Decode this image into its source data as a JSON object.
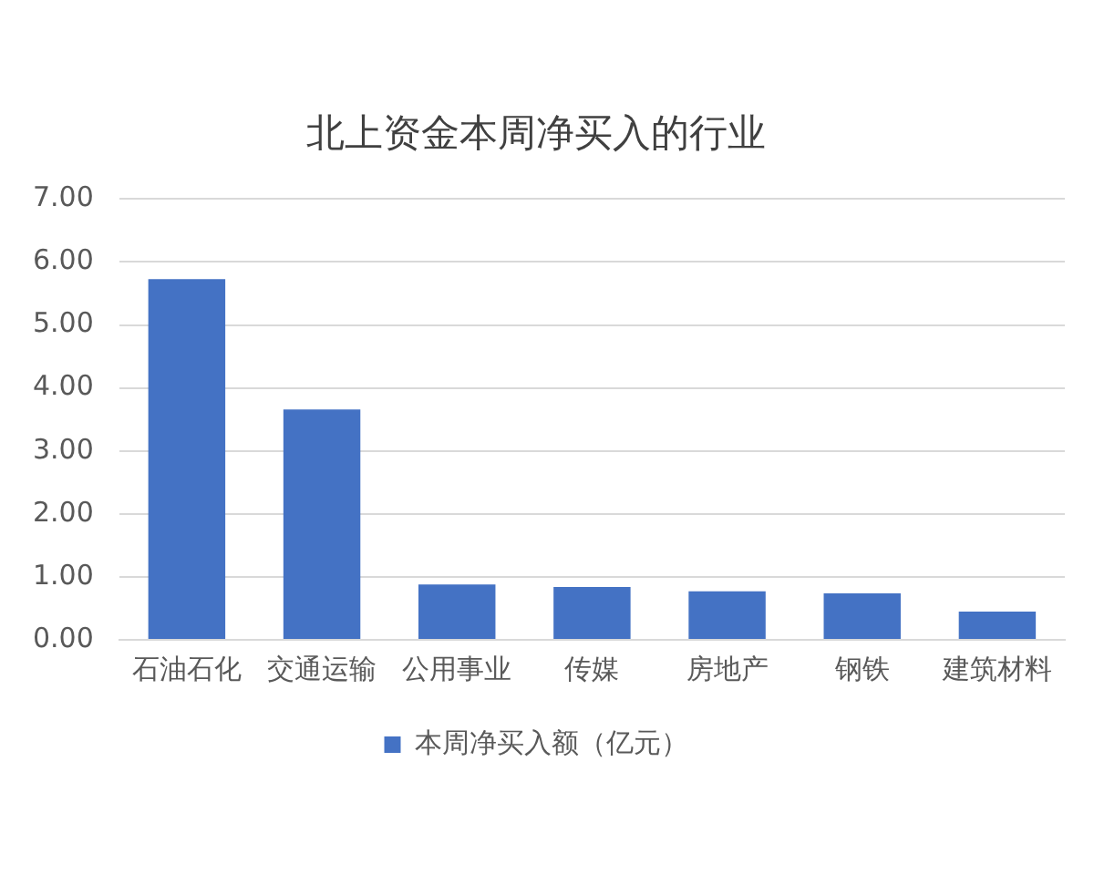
{
  "chart_data": {
    "type": "bar",
    "title": "北上资金本周净买入的行业",
    "categories": [
      "石油石化",
      "交通运输",
      "公用事业",
      "传媒",
      "房地产",
      "钢铁",
      "建筑材料"
    ],
    "series": [
      {
        "name": "本周净买入额（亿元）",
        "color": "#4472c4",
        "values": [
          5.73,
          3.66,
          0.88,
          0.84,
          0.77,
          0.74,
          0.45
        ]
      }
    ],
    "ylim": [
      0,
      7
    ],
    "yticks": [
      {
        "value": 0,
        "label": "0.00"
      },
      {
        "value": 1,
        "label": "1.00"
      },
      {
        "value": 2,
        "label": "2.00"
      },
      {
        "value": 3,
        "label": "3.00"
      },
      {
        "value": 4,
        "label": "4.00"
      },
      {
        "value": 5,
        "label": "5.00"
      },
      {
        "value": 6,
        "label": "6.00"
      },
      {
        "value": 7,
        "label": "7.00"
      }
    ],
    "grid": "y",
    "legend": "bottom"
  }
}
